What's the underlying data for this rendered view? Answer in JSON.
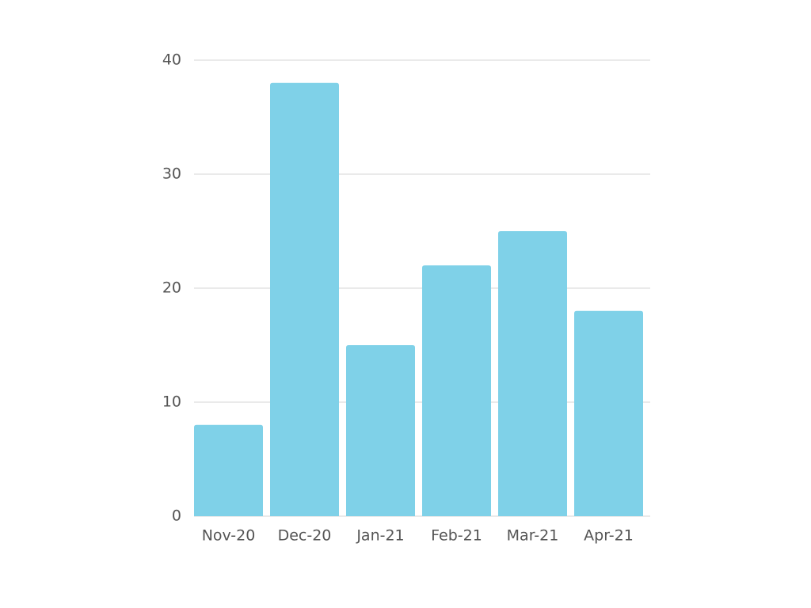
{
  "chart_data": {
    "type": "bar",
    "categories": [
      "Nov-20",
      "Dec-20",
      "Jan-21",
      "Feb-21",
      "Mar-21",
      "Apr-21"
    ],
    "values": [
      8,
      38,
      15,
      22,
      25,
      18
    ],
    "color": "#7fd1e8",
    "ylim": [
      0,
      40
    ],
    "yticks": [
      0,
      10,
      20,
      30,
      40
    ],
    "grid": true
  }
}
